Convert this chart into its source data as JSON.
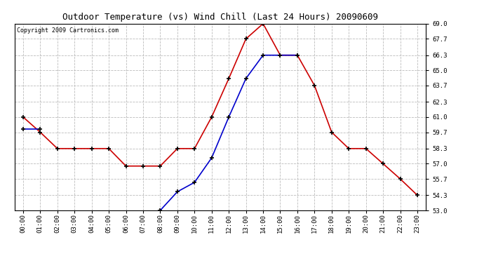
{
  "title": "Outdoor Temperature (vs) Wind Chill (Last 24 Hours) 20090609",
  "copyright": "Copyright 2009 Cartronics.com",
  "x_labels": [
    "00:00",
    "01:00",
    "02:00",
    "03:00",
    "04:00",
    "05:00",
    "06:00",
    "07:00",
    "08:00",
    "09:00",
    "10:00",
    "11:00",
    "12:00",
    "13:00",
    "14:00",
    "15:00",
    "16:00",
    "17:00",
    "18:00",
    "19:00",
    "20:00",
    "21:00",
    "22:00",
    "23:00"
  ],
  "y_min": 53.0,
  "y_max": 69.0,
  "y_ticks": [
    53.0,
    54.3,
    55.7,
    57.0,
    58.3,
    59.7,
    61.0,
    62.3,
    63.7,
    65.0,
    66.3,
    67.7,
    69.0
  ],
  "temp_color": "#cc0000",
  "wind_color": "#0000cc",
  "background_color": "#ffffff",
  "grid_color": "#bbbbbb",
  "temp_data": [
    61.0,
    59.7,
    58.3,
    58.3,
    58.3,
    58.3,
    56.8,
    56.8,
    56.8,
    58.3,
    58.3,
    61.0,
    64.3,
    67.7,
    69.0,
    66.3,
    66.3,
    63.7,
    59.7,
    58.3,
    58.3,
    57.0,
    55.7,
    54.3
  ],
  "wind_data": [
    60.0,
    60.0,
    null,
    null,
    null,
    null,
    null,
    null,
    53.0,
    54.6,
    55.4,
    57.5,
    61.0,
    64.3,
    66.3,
    66.3,
    66.3,
    null,
    null,
    null,
    null,
    null,
    null,
    null
  ]
}
